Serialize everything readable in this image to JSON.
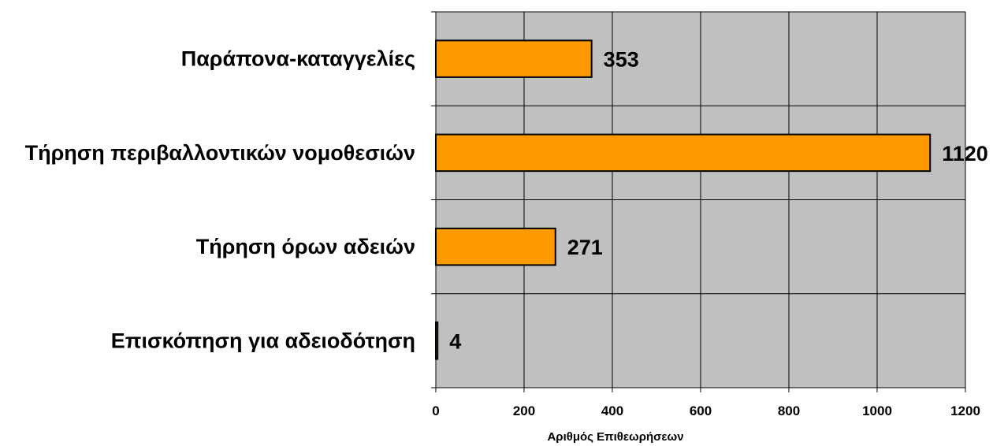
{
  "chart_data": {
    "type": "bar",
    "orientation": "horizontal",
    "title": "",
    "xlabel": "Αριθμός Επιθεωρήσεων",
    "ylabel": "",
    "categories": [
      "Παράπονα-καταγγελίες",
      "Τήρηση περιβαλλοντικών νομοθεσιών",
      "Τήρηση όρων αδειών",
      "Επισκόπηση για αδειοδότηση"
    ],
    "values": [
      353,
      1120,
      271,
      4
    ],
    "data_labels": [
      "353",
      "1120",
      "271",
      "4"
    ],
    "xlim": [
      0,
      1200
    ],
    "x_ticks": [
      0,
      200,
      400,
      600,
      800,
      1000,
      1200
    ],
    "x_tick_labels": [
      "0",
      "200",
      "400",
      "600",
      "800",
      "1000",
      "1200"
    ],
    "grid": true,
    "legend": "none",
    "colors": {
      "bar_fill": "#FF9900",
      "bar_stroke": "#000000",
      "plot_background": "#C0C0C0",
      "grid": "#000000"
    }
  }
}
